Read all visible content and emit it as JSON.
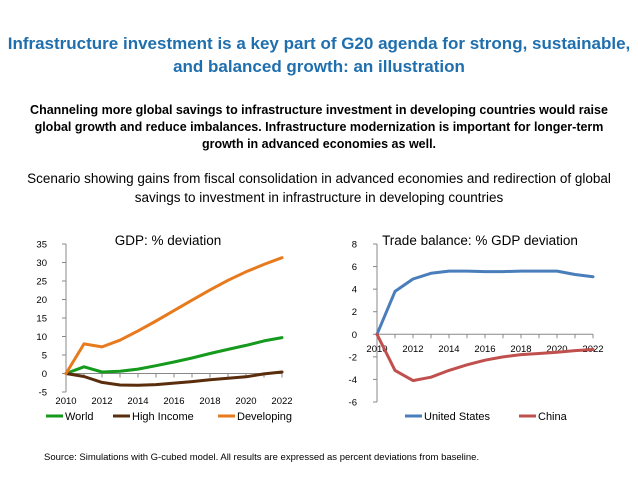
{
  "title": "Infrastructure investment is a key part of G20 agenda for strong, sustainable, and balanced growth: an illustration",
  "subtitle": "Channeling more global savings to infrastructure investment in developing countries would raise global growth and reduce imbalances. Infrastructure modernization is important for longer-term growth in advanced economies as well.",
  "scenario": "Scenario showing gains from fiscal consolidation in advanced economies and redirection of global savings to investment in infrastructure in developing countries",
  "source": "Source: Simulations with G-cubed model. All results are expressed as percent deviations from baseline.",
  "chart_data": [
    {
      "type": "line",
      "title": "GDP: % deviation",
      "x": [
        2010,
        2011,
        2012,
        2013,
        2014,
        2015,
        2016,
        2017,
        2018,
        2019,
        2020,
        2021,
        2022
      ],
      "xticks": [
        2010,
        2012,
        2014,
        2016,
        2018,
        2020,
        2022
      ],
      "yticks": [
        -5,
        0,
        5,
        10,
        15,
        20,
        25,
        30,
        35
      ],
      "ylim": [
        -5,
        35
      ],
      "legend": "bottom",
      "series": [
        {
          "name": "World",
          "color": "#159a1e",
          "values": [
            0,
            1.8,
            0.4,
            0.6,
            1.2,
            2.1,
            3.1,
            4.2,
            5.4,
            6.5,
            7.6,
            8.8,
            9.7
          ]
        },
        {
          "name": "High Income",
          "color": "#5a2d0c",
          "values": [
            0,
            -0.8,
            -2.4,
            -3.1,
            -3.2,
            -3.0,
            -2.6,
            -2.2,
            -1.7,
            -1.3,
            -0.9,
            -0.1,
            0.4
          ]
        },
        {
          "name": "Developing",
          "color": "#e87a1e",
          "values": [
            0,
            8.0,
            7.2,
            9.0,
            11.5,
            14.2,
            17.0,
            19.8,
            22.6,
            25.2,
            27.5,
            29.5,
            31.3
          ]
        }
      ]
    },
    {
      "type": "line",
      "title": "Trade balance: % GDP deviation",
      "x": [
        2010,
        2011,
        2012,
        2013,
        2014,
        2015,
        2016,
        2017,
        2018,
        2019,
        2020,
        2021,
        2022
      ],
      "xticks": [
        2010,
        2012,
        2014,
        2016,
        2018,
        2020,
        2022
      ],
      "yticks": [
        -6,
        -4,
        -2,
        0,
        2,
        4,
        6,
        8
      ],
      "ylim": [
        -6,
        8
      ],
      "legend": "bottom",
      "series": [
        {
          "name": "United States",
          "color": "#4a7ebb",
          "values": [
            0,
            3.8,
            4.9,
            5.4,
            5.6,
            5.6,
            5.55,
            5.55,
            5.6,
            5.6,
            5.6,
            5.3,
            5.1
          ]
        },
        {
          "name": "China",
          "color": "#c0504d",
          "values": [
            0,
            -3.2,
            -4.1,
            -3.8,
            -3.2,
            -2.7,
            -2.3,
            -2.0,
            -1.8,
            -1.7,
            -1.6,
            -1.45,
            -1.35
          ]
        }
      ]
    }
  ]
}
